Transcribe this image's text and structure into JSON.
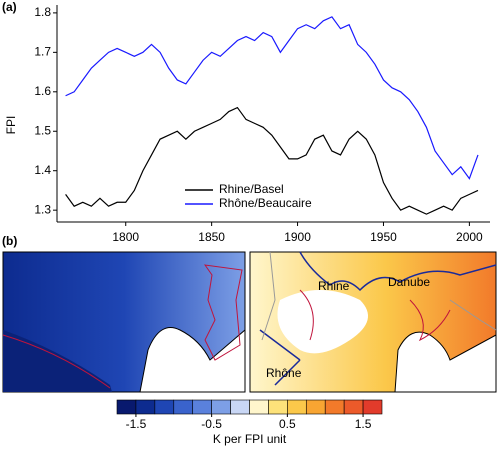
{
  "panel_labels": [
    "(a)",
    "(b)"
  ],
  "map_labels": [
    "Rhine",
    "Danube",
    "Rhône"
  ],
  "chart_data": [
    {
      "type": "line",
      "ylabel": "FPI",
      "x": [
        1765,
        1770,
        1775,
        1780,
        1785,
        1790,
        1795,
        1800,
        1805,
        1810,
        1815,
        1820,
        1825,
        1830,
        1835,
        1840,
        1845,
        1850,
        1855,
        1860,
        1865,
        1870,
        1875,
        1880,
        1885,
        1890,
        1895,
        1900,
        1905,
        1910,
        1915,
        1920,
        1925,
        1930,
        1935,
        1940,
        1945,
        1950,
        1955,
        1960,
        1965,
        1970,
        1975,
        1980,
        1985,
        1990,
        1995,
        2000,
        2005
      ],
      "series": [
        {
          "name": "Rhine/Basel",
          "color": "#000000",
          "values": [
            1.34,
            1.31,
            1.32,
            1.31,
            1.33,
            1.31,
            1.32,
            1.32,
            1.35,
            1.4,
            1.44,
            1.48,
            1.49,
            1.5,
            1.48,
            1.5,
            1.51,
            1.52,
            1.53,
            1.55,
            1.56,
            1.53,
            1.52,
            1.51,
            1.49,
            1.46,
            1.43,
            1.43,
            1.44,
            1.48,
            1.49,
            1.45,
            1.44,
            1.48,
            1.5,
            1.48,
            1.44,
            1.37,
            1.33,
            1.3,
            1.31,
            1.3,
            1.29,
            1.3,
            1.31,
            1.3,
            1.33,
            1.34,
            1.35
          ]
        },
        {
          "name": "Rhône/Beaucaire",
          "color": "#1a1aff",
          "values": [
            1.59,
            1.6,
            1.63,
            1.66,
            1.68,
            1.7,
            1.71,
            1.7,
            1.69,
            1.7,
            1.72,
            1.7,
            1.66,
            1.63,
            1.62,
            1.65,
            1.68,
            1.7,
            1.69,
            1.71,
            1.73,
            1.74,
            1.73,
            1.75,
            1.74,
            1.7,
            1.73,
            1.76,
            1.77,
            1.76,
            1.78,
            1.79,
            1.76,
            1.77,
            1.72,
            1.7,
            1.67,
            1.63,
            1.61,
            1.6,
            1.58,
            1.55,
            1.51,
            1.45,
            1.42,
            1.39,
            1.41,
            1.38,
            1.44
          ]
        }
      ],
      "xlim": [
        1760,
        2012
      ],
      "xticks": [
        1800,
        1850,
        1900,
        1950,
        2000
      ],
      "ylim": [
        1.27,
        1.82
      ],
      "yticks": [
        1.3,
        1.4,
        1.5,
        1.6,
        1.7,
        1.8
      ],
      "legend": "bottom-center"
    },
    {
      "type": "colorbar",
      "xlabel": "K per FPI unit",
      "xlim": [
        -1.75,
        1.75
      ],
      "xticks": [
        -1.5,
        -0.5,
        0.5,
        1.5
      ],
      "colors": [
        "#08196e",
        "#0d2b8f",
        "#1f46b4",
        "#3a63cc",
        "#5a81dc",
        "#7d9fe6",
        "#c9d7f5",
        "#fff6cc",
        "#fde27a",
        "#fbc84a",
        "#f8a532",
        "#f27a2a",
        "#ec5a2a",
        "#e23b2b"
      ]
    }
  ]
}
